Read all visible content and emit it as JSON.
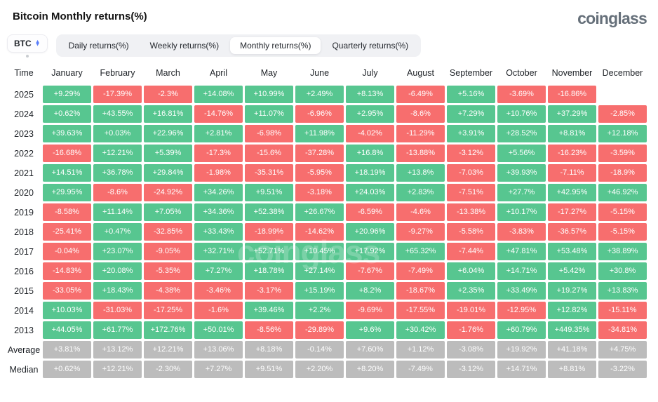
{
  "header": {
    "title": "Bitcoin Monthly returns(%)",
    "logo": "coinglass"
  },
  "controls": {
    "symbol_select": {
      "label": "BTC"
    },
    "tabs": [
      {
        "label": "Daily returns(%)",
        "active": false
      },
      {
        "label": "Weekly returns(%)",
        "active": false
      },
      {
        "label": "Monthly returns(%)",
        "active": true
      },
      {
        "label": "Quarterly returns(%)",
        "active": false
      }
    ]
  },
  "colors": {
    "positive": "#57C690",
    "negative": "#F76E6E",
    "summary": "#BCBCBC"
  },
  "watermark": "coinglass",
  "table": {
    "columns": [
      "Time",
      "January",
      "February",
      "March",
      "April",
      "May",
      "June",
      "July",
      "August",
      "September",
      "October",
      "November",
      "December"
    ],
    "rows": [
      {
        "label": "2025",
        "type": "year",
        "values": [
          "+9.29%",
          "-17.39%",
          "-2.3%",
          "+14.08%",
          "+10.99%",
          "+2.49%",
          "+8.13%",
          "-6.49%",
          "+5.16%",
          "-3.69%",
          "-16.86%",
          ""
        ]
      },
      {
        "label": "2024",
        "type": "year",
        "values": [
          "+0.62%",
          "+43.55%",
          "+16.81%",
          "-14.76%",
          "+11.07%",
          "-6.96%",
          "+2.95%",
          "-8.6%",
          "+7.29%",
          "+10.76%",
          "+37.29%",
          "-2.85%"
        ]
      },
      {
        "label": "2023",
        "type": "year",
        "values": [
          "+39.63%",
          "+0.03%",
          "+22.96%",
          "+2.81%",
          "-6.98%",
          "+11.98%",
          "-4.02%",
          "-11.29%",
          "+3.91%",
          "+28.52%",
          "+8.81%",
          "+12.18%"
        ]
      },
      {
        "label": "2022",
        "type": "year",
        "values": [
          "-16.68%",
          "+12.21%",
          "+5.39%",
          "-17.3%",
          "-15.6%",
          "-37.28%",
          "+16.8%",
          "-13.88%",
          "-3.12%",
          "+5.56%",
          "-16.23%",
          "-3.59%"
        ]
      },
      {
        "label": "2021",
        "type": "year",
        "values": [
          "+14.51%",
          "+36.78%",
          "+29.84%",
          "-1.98%",
          "-35.31%",
          "-5.95%",
          "+18.19%",
          "+13.8%",
          "-7.03%",
          "+39.93%",
          "-7.11%",
          "-18.9%"
        ]
      },
      {
        "label": "2020",
        "type": "year",
        "values": [
          "+29.95%",
          "-8.6%",
          "-24.92%",
          "+34.26%",
          "+9.51%",
          "-3.18%",
          "+24.03%",
          "+2.83%",
          "-7.51%",
          "+27.7%",
          "+42.95%",
          "+46.92%"
        ]
      },
      {
        "label": "2019",
        "type": "year",
        "values": [
          "-8.58%",
          "+11.14%",
          "+7.05%",
          "+34.36%",
          "+52.38%",
          "+26.67%",
          "-6.59%",
          "-4.6%",
          "-13.38%",
          "+10.17%",
          "-17.27%",
          "-5.15%"
        ]
      },
      {
        "label": "2018",
        "type": "year",
        "values": [
          "-25.41%",
          "+0.47%",
          "-32.85%",
          "+33.43%",
          "-18.99%",
          "-14.62%",
          "+20.96%",
          "-9.27%",
          "-5.58%",
          "-3.83%",
          "-36.57%",
          "-5.15%"
        ]
      },
      {
        "label": "2017",
        "type": "year",
        "values": [
          "-0.04%",
          "+23.07%",
          "-9.05%",
          "+32.71%",
          "+52.71%",
          "+10.45%",
          "+17.92%",
          "+65.32%",
          "-7.44%",
          "+47.81%",
          "+53.48%",
          "+38.89%"
        ]
      },
      {
        "label": "2016",
        "type": "year",
        "values": [
          "-14.83%",
          "+20.08%",
          "-5.35%",
          "+7.27%",
          "+18.78%",
          "+27.14%",
          "-7.67%",
          "-7.49%",
          "+6.04%",
          "+14.71%",
          "+5.42%",
          "+30.8%"
        ]
      },
      {
        "label": "2015",
        "type": "year",
        "values": [
          "-33.05%",
          "+18.43%",
          "-4.38%",
          "-3.46%",
          "-3.17%",
          "+15.19%",
          "+8.2%",
          "-18.67%",
          "+2.35%",
          "+33.49%",
          "+19.27%",
          "+13.83%"
        ]
      },
      {
        "label": "2014",
        "type": "year",
        "values": [
          "+10.03%",
          "-31.03%",
          "-17.25%",
          "-1.6%",
          "+39.46%",
          "+2.2%",
          "-9.69%",
          "-17.55%",
          "-19.01%",
          "-12.95%",
          "+12.82%",
          "-15.11%"
        ]
      },
      {
        "label": "2013",
        "type": "year",
        "values": [
          "+44.05%",
          "+61.77%",
          "+172.76%",
          "+50.01%",
          "-8.56%",
          "-29.89%",
          "+9.6%",
          "+30.42%",
          "-1.76%",
          "+60.79%",
          "+449.35%",
          "-34.81%"
        ]
      },
      {
        "label": "Average",
        "type": "summary",
        "values": [
          "+3.81%",
          "+13.12%",
          "+12.21%",
          "+13.06%",
          "+8.18%",
          "-0.14%",
          "+7.60%",
          "+1.12%",
          "-3.08%",
          "+19.92%",
          "+41.18%",
          "+4.75%"
        ]
      },
      {
        "label": "Median",
        "type": "summary",
        "values": [
          "+0.62%",
          "+12.21%",
          "-2.30%",
          "+7.27%",
          "+9.51%",
          "+2.20%",
          "+8.20%",
          "-7.49%",
          "-3.12%",
          "+14.71%",
          "+8.81%",
          "-3.22%"
        ]
      }
    ]
  }
}
